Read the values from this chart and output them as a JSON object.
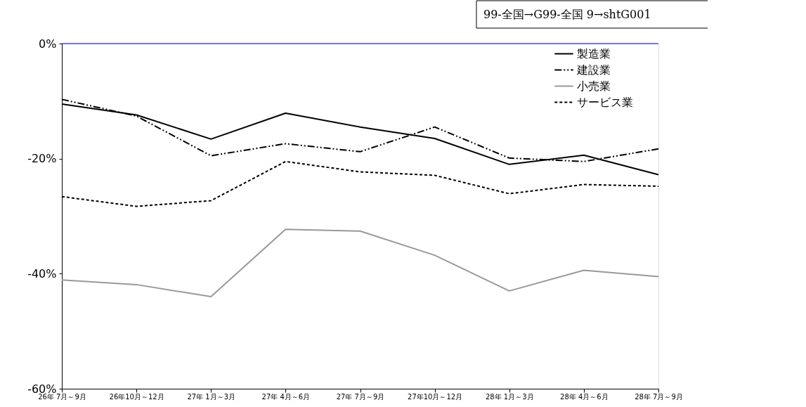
{
  "chart_data": {
    "type": "line",
    "categories": [
      "26年 7月～9月",
      "26年10月～12月",
      "27年 1月～3月",
      "27年 4月～6月",
      "27年 7月～9月",
      "27年10月～12月",
      "28年 1月～3月",
      "28年 4月～6月",
      "28年 7月～9月"
    ],
    "series": [
      {
        "name": "製造業",
        "color": "#000000",
        "line_style": "solid",
        "values": [
          -10.5,
          -12.4,
          -16.6,
          -12.1,
          -14.5,
          -16.5,
          -21.0,
          -19.4,
          -22.8
        ]
      },
      {
        "name": "建設業",
        "color": "#000000",
        "line_style": "dashdot",
        "values": [
          -9.7,
          -12.6,
          -19.5,
          -17.4,
          -18.8,
          -14.5,
          -19.9,
          -20.5,
          -18.3
        ]
      },
      {
        "name": "小売業",
        "color": "#999999",
        "line_style": "solid",
        "values": [
          -41.1,
          -41.9,
          -44.0,
          -32.3,
          -32.6,
          -36.8,
          -43.0,
          -39.4,
          -40.5
        ]
      },
      {
        "name": "サービス業",
        "color": "#000000",
        "line_style": "dashed",
        "values": [
          -26.6,
          -28.3,
          -27.3,
          -20.5,
          -22.3,
          -22.9,
          -26.1,
          -24.5,
          -24.8
        ]
      }
    ],
    "ylim": [
      -60,
      0
    ],
    "yticks": [
      {
        "value": 0,
        "label": "0%"
      },
      {
        "value": -20,
        "label": "-20%"
      },
      {
        "value": -40,
        "label": "-40%"
      },
      {
        "value": -60,
        "label": "-60%"
      }
    ],
    "ref_lines": [
      {
        "axis": "y",
        "value": 0,
        "color": "#0000cc"
      }
    ],
    "annotations": [
      "99-全国→G99-全国 9→shtG001"
    ],
    "legend": "top right",
    "grid": false,
    "marker": "none"
  }
}
